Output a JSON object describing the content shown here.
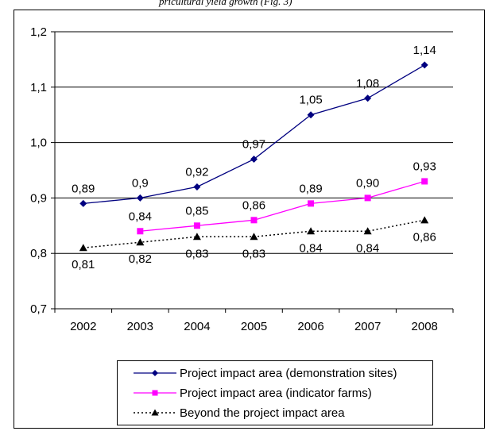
{
  "header_fragment": "pricultural yield growth  (Fig. 3)",
  "chart_data": {
    "type": "line",
    "x": [
      "2002",
      "2003",
      "2004",
      "2005",
      "2006",
      "2007",
      "2008"
    ],
    "ylim": [
      0.7,
      1.2
    ],
    "yticks": [
      "0,7",
      "0,8",
      "0,9",
      "1,0",
      "1,1",
      "1,2"
    ],
    "ytick_values": [
      0.7,
      0.8,
      0.9,
      1.0,
      1.1,
      1.2
    ],
    "grid": "horizontal",
    "legend_position": "bottom",
    "series": [
      {
        "name": "Project impact area (demonstration sites)",
        "values": [
          0.89,
          0.9,
          0.92,
          0.97,
          1.05,
          1.08,
          1.14
        ],
        "labels": [
          "0,89",
          "0,9",
          "0,92",
          "0,97",
          "1,05",
          "1,08",
          "1,14"
        ],
        "color": "#000080",
        "marker": "diamond",
        "dash": "solid",
        "label_position": "above"
      },
      {
        "name": "Project impact area (indicator farms)",
        "values": [
          null,
          0.84,
          0.85,
          0.86,
          0.89,
          0.9,
          0.93
        ],
        "labels": [
          null,
          "0,84",
          "0,85",
          "0,86",
          "0,89",
          "0,90",
          "0,93"
        ],
        "color": "#ff00ff",
        "marker": "square",
        "dash": "solid",
        "label_position": "above"
      },
      {
        "name": "Beyond the project impact area",
        "values": [
          0.81,
          0.82,
          0.83,
          0.83,
          0.84,
          0.84,
          0.86
        ],
        "labels": [
          "0,81",
          "0,82",
          "0,83",
          "0,83",
          "0,84",
          "0,84",
          "0,86"
        ],
        "color": "#000000",
        "marker": "triangle",
        "dash": "dotted",
        "label_position": "below"
      }
    ]
  }
}
